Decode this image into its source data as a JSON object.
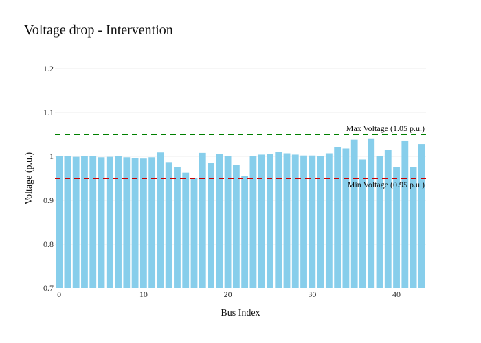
{
  "chart_data": {
    "type": "bar",
    "title": "Voltage drop - Intervention",
    "xlabel": "Bus Index",
    "ylabel": "Voltage (p.u.)",
    "x": [
      0,
      1,
      2,
      3,
      4,
      5,
      6,
      7,
      8,
      9,
      10,
      11,
      12,
      13,
      14,
      15,
      16,
      17,
      18,
      19,
      20,
      21,
      22,
      23,
      24,
      25,
      26,
      27,
      28,
      29,
      30,
      31,
      32,
      33,
      34,
      35,
      36,
      37,
      38,
      39,
      40,
      41,
      42,
      43
    ],
    "values": [
      1.0,
      1.0,
      0.999,
      1.0,
      1.0,
      0.998,
      0.999,
      1.0,
      0.998,
      0.996,
      0.995,
      0.998,
      1.009,
      0.987,
      0.975,
      0.963,
      0.951,
      1.008,
      0.985,
      1.005,
      1.0,
      0.981,
      0.955,
      1.0,
      1.004,
      1.006,
      1.01,
      1.007,
      1.004,
      1.002,
      1.002,
      1.0,
      1.007,
      1.021,
      1.018,
      1.038,
      0.993,
      1.041,
      1.001,
      1.015,
      0.976,
      1.036,
      0.975,
      1.028
    ],
    "xlim": [
      -0.5,
      43.5
    ],
    "ylim": [
      0.7,
      1.2
    ],
    "xticks": [
      0,
      10,
      20,
      30,
      40
    ],
    "xtick_labels": [
      "0",
      "10",
      "20",
      "30",
      "40"
    ],
    "yticks": [
      0.7,
      0.8,
      0.9,
      1.0,
      1.1,
      1.2
    ],
    "ytick_labels": [
      "0.7",
      "0.8",
      "0.9",
      "1",
      "1.1",
      "1.2"
    ],
    "bar_color": "#87CEEB",
    "grid": true,
    "reference_lines": [
      {
        "value": 1.05,
        "label": "Max Voltage (1.05 p.u.)",
        "color": "#008000",
        "style": "dashed",
        "label_position": "above"
      },
      {
        "value": 0.95,
        "label": "Min Voltage (0.95 p.u.)",
        "color": "#CC0000",
        "style": "dashed",
        "label_position": "below"
      }
    ]
  }
}
